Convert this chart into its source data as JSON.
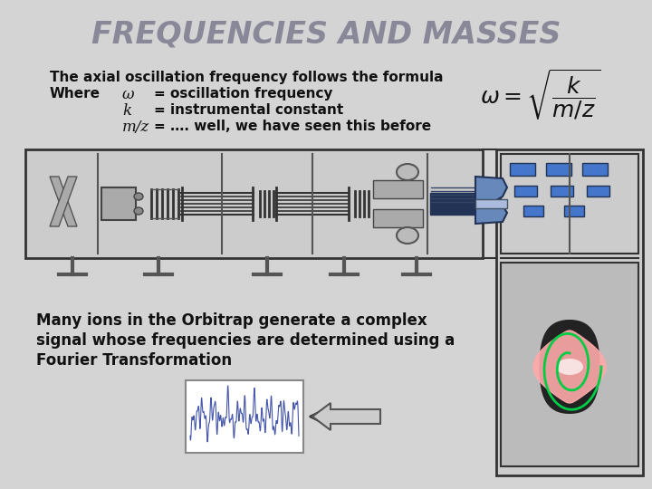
{
  "title": "FREQUENCIES AND MASSES",
  "title_color": "#888899",
  "title_fontsize": 24,
  "bg_color": "#d4d4d4",
  "line1": "The axial oscillation frequency follows the formula",
  "line2_label": "Where",
  "line2_var": "ω",
  "line2_def": "= oscillation frequency",
  "line3_var": "k",
  "line3_def": "= instrumental constant",
  "line4_var": "m/z",
  "line4_def": "= …. well, we have seen this before",
  "bottom_text_line1": "Many ions in the Orbitrap generate a complex",
  "bottom_text_line2": "signal whose frequencies are determined using a",
  "bottom_text_line3": "Fourier Transformation",
  "text_color": "#111111",
  "text_fontsize": 11
}
